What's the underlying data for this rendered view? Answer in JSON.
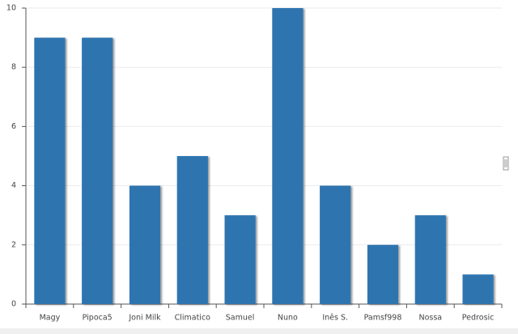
{
  "chart_data": {
    "type": "bar",
    "categories": [
      "Magy",
      "Pipoca5",
      "Joni Milk",
      "Climatico",
      "Samuel",
      "Nuno",
      "Inês S.",
      "Pamsf998",
      "Nossa",
      "Pedrosic"
    ],
    "values": [
      9,
      9,
      4,
      5,
      3,
      10,
      4,
      2,
      3,
      1
    ],
    "color": "#2e75b0",
    "ylim": [
      0,
      10
    ],
    "yticks": [
      0,
      2,
      4,
      6,
      8,
      10
    ],
    "grid": true
  }
}
